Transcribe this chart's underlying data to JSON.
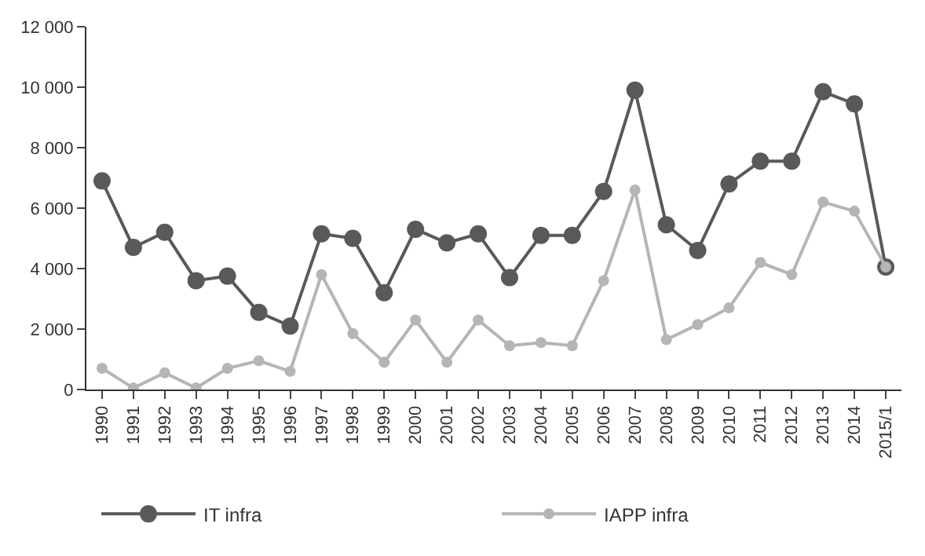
{
  "chart_data": {
    "type": "line",
    "categories": [
      "1990",
      "1991",
      "1992",
      "1993",
      "1994",
      "1995",
      "1996",
      "1997",
      "1998",
      "1999",
      "2000",
      "2001",
      "2002",
      "2003",
      "2004",
      "2005",
      "2006",
      "2007",
      "2008",
      "2009",
      "2010",
      "2011",
      "2012",
      "2013",
      "2014",
      "2015/1"
    ],
    "series": [
      {
        "name": "IT infra",
        "color": "#58595b",
        "values": [
          6900,
          4700,
          5200,
          3600,
          3750,
          2550,
          2100,
          5150,
          5000,
          3200,
          5300,
          4850,
          5150,
          3700,
          5100,
          5100,
          6550,
          9900,
          5450,
          4600,
          6800,
          7550,
          7550,
          9850,
          9450,
          4050
        ]
      },
      {
        "name": "IAPP infra",
        "color": "#b5b5b5",
        "values": [
          700,
          50,
          550,
          50,
          700,
          950,
          600,
          3800,
          1850,
          900,
          2300,
          900,
          2300,
          1450,
          1550,
          1450,
          3600,
          6600,
          1650,
          2150,
          2700,
          4200,
          3800,
          6200,
          5900,
          4050
        ]
      }
    ],
    "ylim": [
      0,
      12000
    ],
    "yticks": [
      {
        "value": 0,
        "label": "0"
      },
      {
        "value": 2000,
        "label": "2 000"
      },
      {
        "value": 4000,
        "label": "4 000"
      },
      {
        "value": 6000,
        "label": "6 000"
      },
      {
        "value": 8000,
        "label": "8 000"
      },
      {
        "value": 10000,
        "label": "10 000"
      },
      {
        "value": 12000,
        "label": "12 000"
      }
    ],
    "grid": false,
    "legend": "bottom",
    "marker": "circle",
    "line_style": "solid"
  }
}
